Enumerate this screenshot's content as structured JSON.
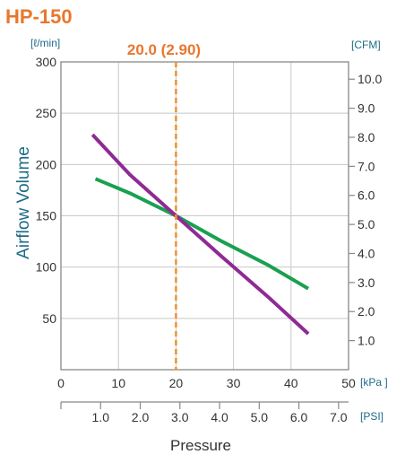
{
  "chart_data": {
    "type": "line",
    "title": "HP-150",
    "reference_line": {
      "x": 20.0,
      "label": "20.0 (2.90)",
      "color": "#f0922e",
      "style": "dashed"
    },
    "left_axis": {
      "unit": "[ℓ/min]",
      "label": "Airflow Volume",
      "ticks": [
        50,
        100,
        150,
        200,
        250,
        300
      ],
      "range": [
        0,
        300
      ]
    },
    "right_axis": {
      "unit": "[CFM]",
      "ticks": [
        "1.0",
        "2.0",
        "3.0",
        "4.0",
        "5.0",
        "6.0",
        "7.0",
        "8.0",
        "9.0",
        "10.0"
      ]
    },
    "x_axis": {
      "unit": "[kPa ]",
      "ticks": [
        0,
        10,
        20,
        30,
        40,
        50
      ],
      "range": [
        0,
        50
      ]
    },
    "x_axis_psi": {
      "unit": "[PSI]",
      "ticks": [
        "1.0",
        "2.0",
        "3.0",
        "4.0",
        "5.0",
        "6.0",
        "7.0"
      ]
    },
    "xlabel": "Pressure",
    "grid": true,
    "series": [
      {
        "color": "#1aa050",
        "x": [
          6,
          12,
          20,
          28,
          36,
          43
        ],
        "y": [
          186,
          172,
          150,
          125,
          102,
          79
        ]
      },
      {
        "color": "#8e2a94",
        "x": [
          5.5,
          12,
          20,
          28,
          36,
          43
        ],
        "y": [
          229,
          190,
          150,
          110,
          71,
          35
        ]
      }
    ]
  }
}
